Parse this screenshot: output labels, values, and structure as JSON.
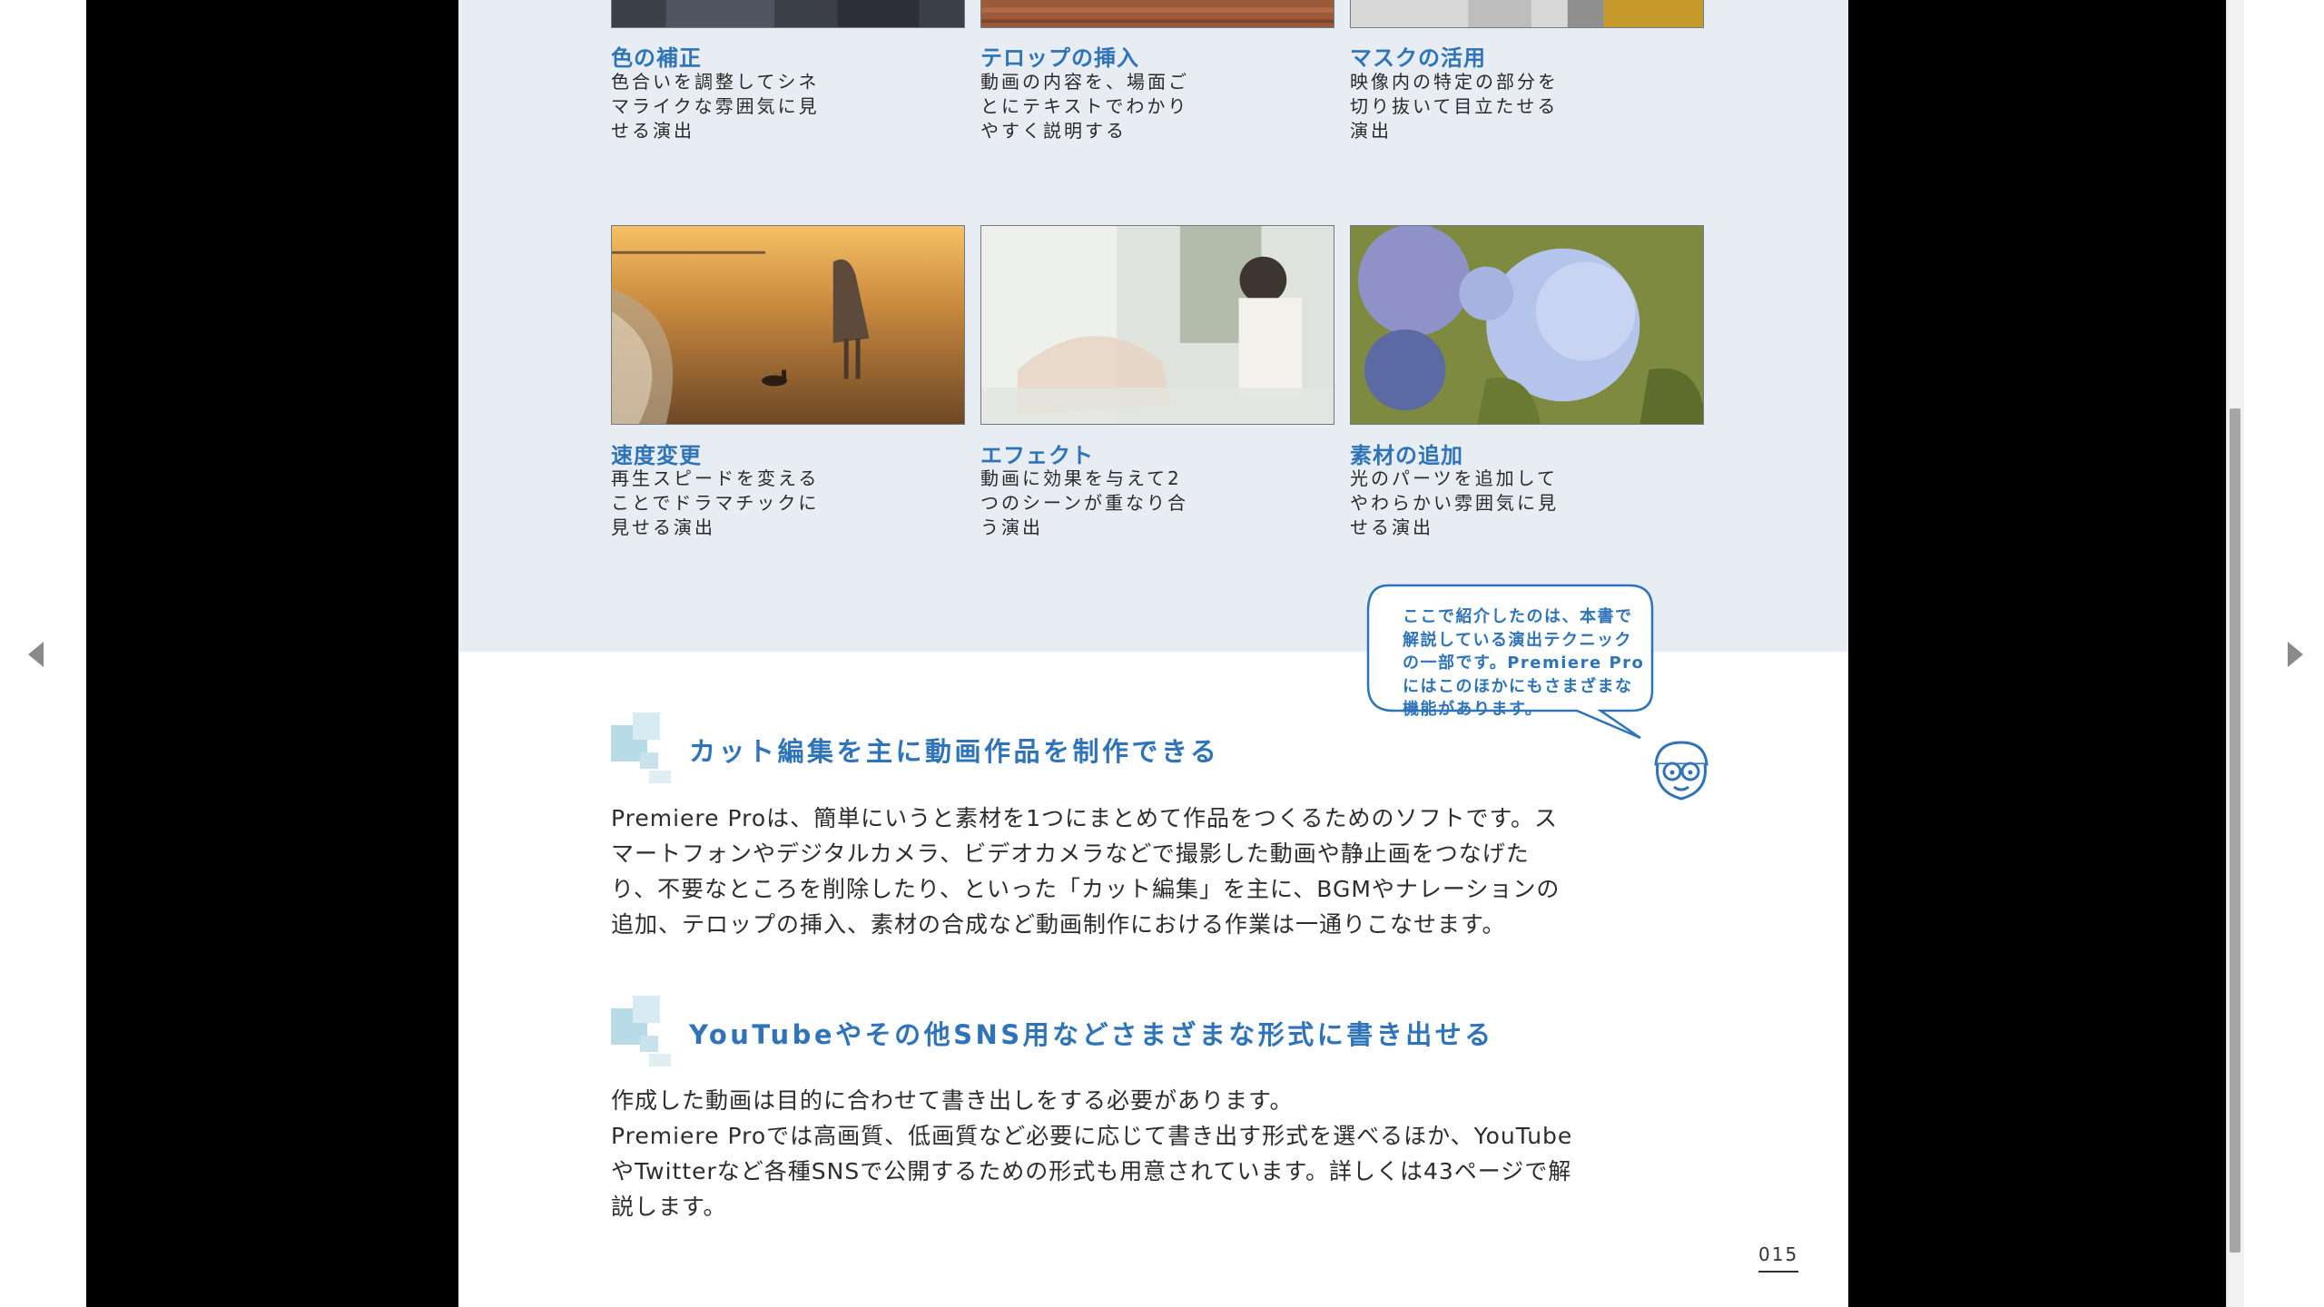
{
  "nav": {
    "prev_icon": "triangle-left-icon",
    "next_icon": "triangle-right-icon"
  },
  "top_row": [
    {
      "title": "色の補正",
      "text": "色合いを調整してシネマライクな雰囲気に見せる演出"
    },
    {
      "title": "テロップの挿入",
      "text": "動画の内容を、場面ごとにテキストでわかりやすく説明する"
    },
    {
      "title": "マスクの活用",
      "text": "映像内の特定の部分を切り抜いて目立たせる演出"
    }
  ],
  "bottom_row": [
    {
      "title": "速度変更",
      "text": "再生スピードを変えることでドラマチックに見せる演出",
      "image": "beach-sunset-girl-dog-photo"
    },
    {
      "title": "エフェクト",
      "text": "動画に効果を与えて2つのシーンが重なり合う演出",
      "image": "double-exposure-woman-photo"
    },
    {
      "title": "素材の追加",
      "text": "光のパーツを追加してやわらかい雰囲気に見せる演出",
      "image": "hydrangea-flowers-photo"
    }
  ],
  "speech_bubble": {
    "text": "ここで紹介したのは、本書で解説している演出テクニックの一部です。Premiere Proにはこのほかにもさまざまな機能があります。",
    "mascot": "glasses-boy-mascot-icon"
  },
  "sections": [
    {
      "heading": "カット編集を主に動画作品を制作できる",
      "paragraphs": [
        "Premiere Proは、簡単にいうと素材を1つにまとめて作品をつくるためのソフトです。スマートフォンやデジタルカメラ、ビデオカメラなどで撮影した動画や静止画をつなげたり、不要なところを削除したり、といった「カット編集」を主に、BGMやナレーションの追加、テロップの挿入、素材の合成など動画制作における作業は一通りこなせます。"
      ]
    },
    {
      "heading": "YouTubeやその他SNS用などさまざまな形式に書き出せる",
      "paragraphs": [
        "作成した動画は目的に合わせて書き出しをする必要があります。",
        "Premiere Proでは高画質、低画質など必要に応じて書き出す形式を選べるほか、YouTubeやTwitterなど各種SNSで公開するための形式も用意されています。詳しくは43ページで解説します。"
      ]
    }
  ],
  "page_number": "015",
  "colors": {
    "accent": "#2f74b8",
    "band": "#e7edf2",
    "viewer_bg": "#000000"
  }
}
